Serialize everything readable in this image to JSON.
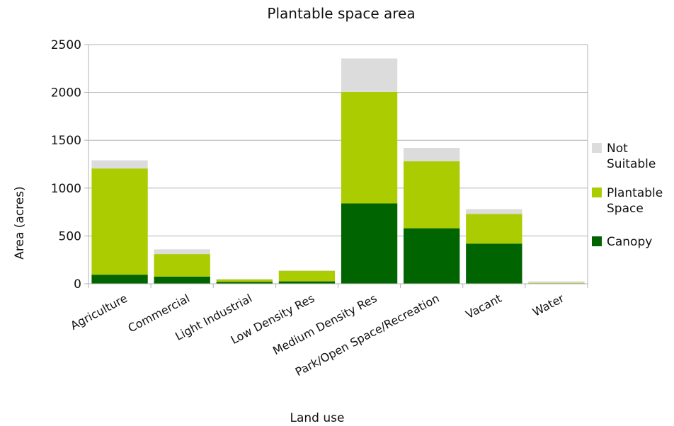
{
  "chart_data": {
    "type": "bar",
    "stacked": true,
    "title": "Plantable space area",
    "xlabel": "Land use",
    "ylabel": "Area (acres)",
    "ylim": [
      0,
      2500
    ],
    "yticks": [
      0,
      500,
      1000,
      1500,
      2000,
      2500
    ],
    "grid": true,
    "legend_position": "right",
    "categories": [
      "Agriculture",
      "Commercial",
      "Light Industrial",
      "Low Density Res",
      "Medium Density Res",
      "Park/Open Space/Recreation",
      "Vacant",
      "Water"
    ],
    "series": [
      {
        "name": "Canopy",
        "color": "#006400",
        "values": [
          95,
          75,
          20,
          25,
          840,
          580,
          420,
          5
        ]
      },
      {
        "name": "Plantable Space",
        "color": "#aacc00",
        "values": [
          1110,
          235,
          25,
          110,
          1165,
          700,
          310,
          5
        ]
      },
      {
        "name": "Not Suitable",
        "color": "#dcdcdc",
        "values": [
          85,
          50,
          5,
          5,
          350,
          140,
          50,
          15
        ]
      }
    ],
    "legend_lines": [
      [
        "Not",
        "Suitable"
      ],
      [
        "Plantable",
        "Space"
      ],
      [
        "Canopy"
      ]
    ]
  }
}
